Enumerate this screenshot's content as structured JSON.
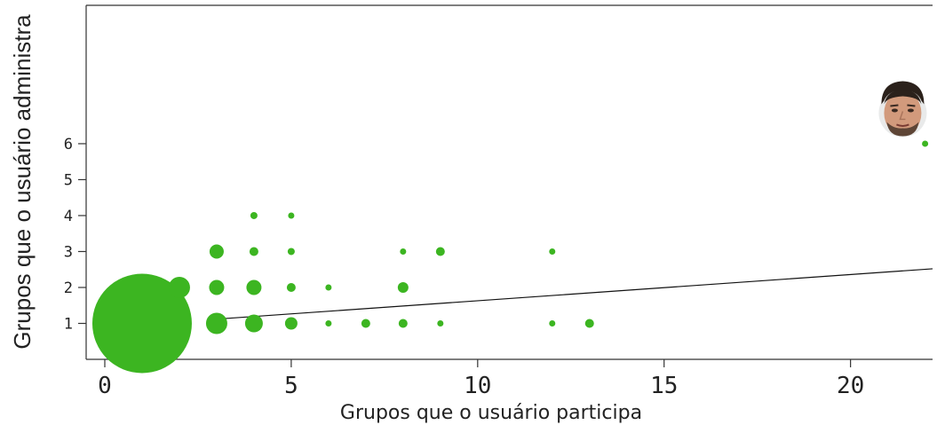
{
  "chart_data": {
    "type": "scatter",
    "title": "",
    "xlabel": "Grupos que o usuário participa",
    "ylabel": "Grupos que o usuário administra",
    "xlim": [
      -0.5,
      22.2
    ],
    "ylim": [
      0.0,
      9.85
    ],
    "x_ticks": [
      0,
      5,
      10,
      15,
      20
    ],
    "y_ticks": [
      1,
      2,
      3,
      4,
      5,
      6
    ],
    "grid": false,
    "point_color": "#3cb521",
    "line_color": "#111111",
    "points": [
      {
        "x": 1,
        "y": 1,
        "size": 56
      },
      {
        "x": 2,
        "y": 2,
        "size": 12
      },
      {
        "x": 3,
        "y": 1,
        "size": 12
      },
      {
        "x": 3,
        "y": 2,
        "size": 8.5
      },
      {
        "x": 3,
        "y": 3,
        "size": 8
      },
      {
        "x": 4,
        "y": 1,
        "size": 10
      },
      {
        "x": 4,
        "y": 2,
        "size": 8.5
      },
      {
        "x": 4,
        "y": 3,
        "size": 5
      },
      {
        "x": 4,
        "y": 4,
        "size": 4
      },
      {
        "x": 5,
        "y": 1,
        "size": 7
      },
      {
        "x": 5,
        "y": 2,
        "size": 5
      },
      {
        "x": 5,
        "y": 3,
        "size": 4
      },
      {
        "x": 5,
        "y": 4,
        "size": 3.5
      },
      {
        "x": 6,
        "y": 1,
        "size": 3.5
      },
      {
        "x": 6,
        "y": 2,
        "size": 3.5
      },
      {
        "x": 7,
        "y": 1,
        "size": 5
      },
      {
        "x": 8,
        "y": 1,
        "size": 5
      },
      {
        "x": 8,
        "y": 2,
        "size": 6
      },
      {
        "x": 8,
        "y": 3,
        "size": 3.5
      },
      {
        "x": 9,
        "y": 1,
        "size": 3.5
      },
      {
        "x": 9,
        "y": 3,
        "size": 5
      },
      {
        "x": 12,
        "y": 1,
        "size": 3.5
      },
      {
        "x": 12,
        "y": 3,
        "size": 3.5
      },
      {
        "x": 13,
        "y": 1,
        "size": 5
      },
      {
        "x": 22,
        "y": 6,
        "size": 3.5
      }
    ],
    "trend_line": {
      "x": [
        3,
        22.2
      ],
      "y": [
        1.12,
        2.52
      ]
    },
    "annotations": [
      {
        "type": "face-photo",
        "x": 21.4,
        "y": 6.95
      }
    ]
  }
}
